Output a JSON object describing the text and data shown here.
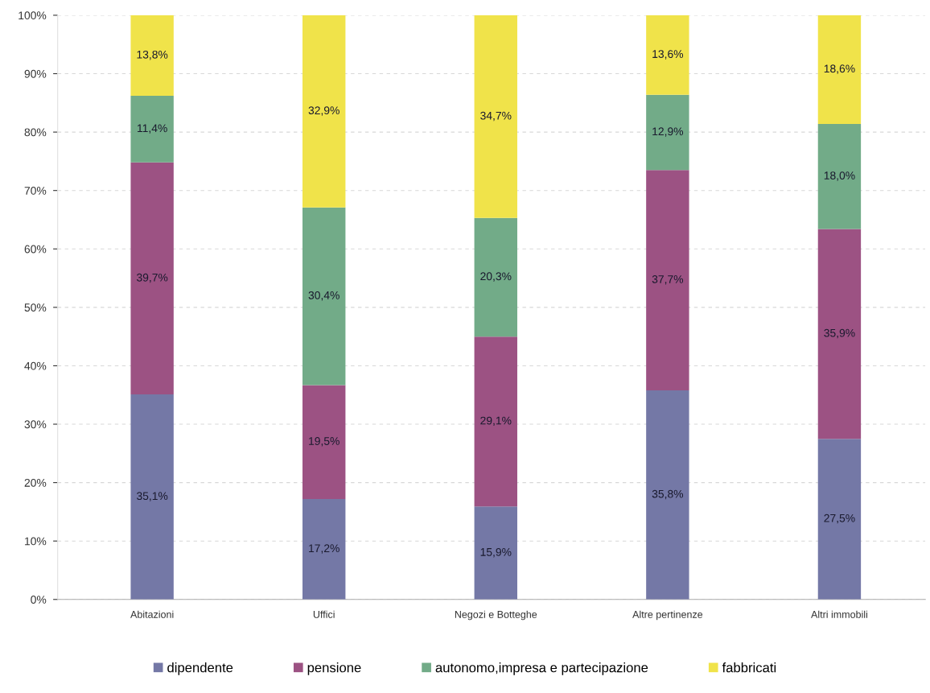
{
  "chart_data": {
    "type": "bar",
    "stacked": true,
    "categories": [
      "Abitazioni",
      "Uffici",
      "Negozi e Botteghe",
      "Altre pertinenze",
      "Altri immobili"
    ],
    "series": [
      {
        "name": "dipendente",
        "color": "#7478a6",
        "values": [
          35.1,
          17.2,
          15.9,
          35.8,
          27.5
        ],
        "value_labels": [
          "35,1%",
          "17,2%",
          "15,9%",
          "35,8%",
          "27,5%"
        ]
      },
      {
        "name": "pensione",
        "color": "#9c5283",
        "values": [
          39.7,
          19.5,
          29.1,
          37.7,
          35.9
        ],
        "value_labels": [
          "39,7%",
          "19,5%",
          "29,1%",
          "37,7%",
          "35,9%"
        ]
      },
      {
        "name": "autonomo,impresa e partecipazione",
        "color": "#72ab88",
        "values": [
          11.4,
          30.4,
          20.3,
          12.9,
          18.0
        ],
        "value_labels": [
          "11,4%",
          "30,4%",
          "20,3%",
          "12,9%",
          "18,0%"
        ]
      },
      {
        "name": "fabbricati",
        "color": "#f0e34a",
        "values": [
          13.8,
          32.9,
          34.7,
          13.6,
          18.6
        ],
        "value_labels": [
          "13,8%",
          "32,9%",
          "34,7%",
          "13,6%",
          "18,6%"
        ]
      }
    ],
    "ylim": [
      0,
      100
    ],
    "yticks": [
      {
        "value": 0,
        "label": "0%"
      },
      {
        "value": 10,
        "label": "10%"
      },
      {
        "value": 20,
        "label": "20%"
      },
      {
        "value": 30,
        "label": "30%"
      },
      {
        "value": 40,
        "label": "40%"
      },
      {
        "value": 50,
        "label": "50%"
      },
      {
        "value": 60,
        "label": "60%"
      },
      {
        "value": 70,
        "label": "70%"
      },
      {
        "value": 80,
        "label": "80%"
      },
      {
        "value": 90,
        "label": "90%"
      },
      {
        "value": 100,
        "label": "100%"
      }
    ],
    "grid": "y",
    "legend": "bottom"
  }
}
